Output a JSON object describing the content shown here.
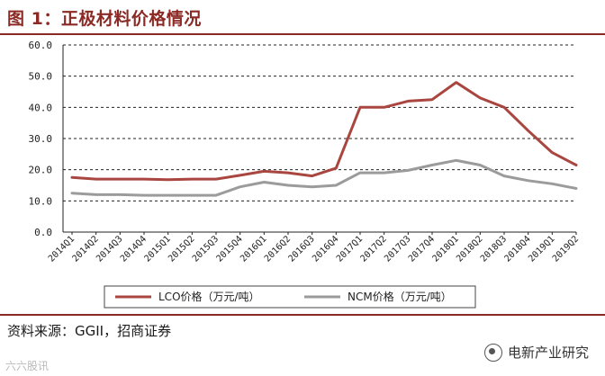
{
  "header": {
    "title": "图 1：正极材料价格情况"
  },
  "footer": {
    "source": "资料来源：GGII，招商证券",
    "watermark_right": "电新产业研究",
    "watermark_left": "六六股讯"
  },
  "colors": {
    "lco": "#a94640",
    "ncm": "#9b9b9b",
    "accent": "#8b2a25"
  },
  "chart_data": {
    "type": "line",
    "categories": [
      "2014Q1",
      "2014Q2",
      "2014Q3",
      "2014Q4",
      "2015Q1",
      "2015Q2",
      "2015Q3",
      "2015Q4",
      "2016Q1",
      "2016Q2",
      "2016Q3",
      "2016Q4",
      "2017Q1",
      "2017Q2",
      "2017Q3",
      "2017Q4",
      "2018Q1",
      "2018Q2",
      "2018Q3",
      "2018Q4",
      "2019Q1",
      "2019Q2"
    ],
    "series": [
      {
        "name": "LCO价格（万元/吨）",
        "color": "#a94640",
        "values": [
          17.5,
          17.0,
          17.0,
          17.0,
          16.8,
          17.0,
          17.0,
          18.2,
          19.5,
          19.0,
          18.0,
          20.5,
          40.0,
          40.0,
          42.0,
          42.5,
          48.0,
          43.0,
          40.0,
          32.5,
          25.5,
          21.5
        ]
      },
      {
        "name": "NCM价格（万元/吨）",
        "color": "#9b9b9b",
        "values": [
          12.5,
          12.0,
          12.0,
          11.8,
          11.8,
          11.8,
          11.8,
          14.5,
          16.0,
          15.0,
          14.5,
          15.0,
          19.0,
          19.0,
          19.8,
          21.5,
          23.0,
          21.5,
          18.0,
          16.5,
          15.5,
          14.0
        ]
      }
    ],
    "y_ticks": [
      "0.0",
      "10.0",
      "20.0",
      "30.0",
      "40.0",
      "50.0",
      "60.0"
    ],
    "ylim": [
      0,
      60
    ],
    "grid": true,
    "legend_position": "bottom"
  }
}
